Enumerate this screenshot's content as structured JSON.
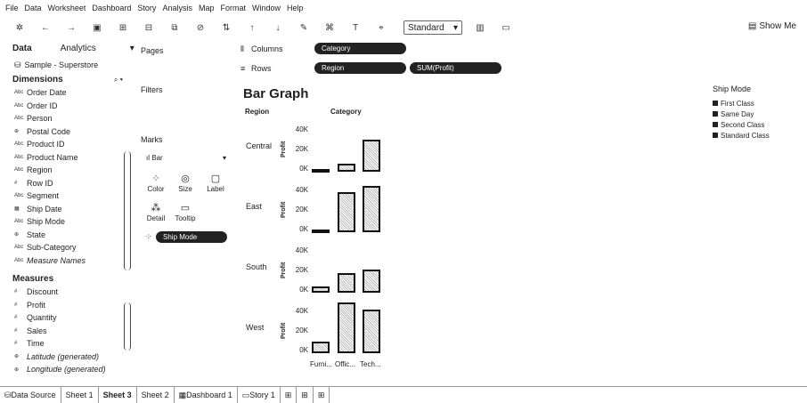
{
  "menu": [
    "File",
    "Data",
    "Worksheet",
    "Dashboard",
    "Story",
    "Analysis",
    "Map",
    "Format",
    "Window",
    "Help"
  ],
  "toolbar": {
    "fit_select": "Standard",
    "show_me": "Show Me"
  },
  "data_pane": {
    "tab_data": "Data",
    "tab_analytics": "Analytics",
    "datasource": "Sample - Superstore",
    "dimensions_header": "Dimensions",
    "dimensions": [
      {
        "type": "Abc",
        "name": "Order Date"
      },
      {
        "type": "Abc",
        "name": "Order ID"
      },
      {
        "type": "Abc",
        "name": "Person"
      },
      {
        "type": "⊕",
        "name": "Postal Code"
      },
      {
        "type": "Abc",
        "name": "Product ID"
      },
      {
        "type": "Abc",
        "name": "Product Name"
      },
      {
        "type": "Abc",
        "name": "Region"
      },
      {
        "type": "#",
        "name": "Row ID"
      },
      {
        "type": "Abc",
        "name": "Segment"
      },
      {
        "type": "▦",
        "name": "Ship Date"
      },
      {
        "type": "Abc",
        "name": "Ship Mode"
      },
      {
        "type": "⊕",
        "name": "State"
      },
      {
        "type": "Abc",
        "name": "Sub-Category"
      },
      {
        "type": "Abc",
        "name": "Measure Names",
        "italic": true
      }
    ],
    "measures_header": "Measures",
    "measures": [
      {
        "type": "#",
        "name": "Discount"
      },
      {
        "type": "#",
        "name": "Profit"
      },
      {
        "type": "#",
        "name": "Quantity"
      },
      {
        "type": "#",
        "name": "Sales"
      },
      {
        "type": "#",
        "name": "Time"
      },
      {
        "type": "⊕",
        "name": "Latitude (generated)",
        "italic": true
      },
      {
        "type": "⊕",
        "name": "Longitude (generated)",
        "italic": true
      }
    ]
  },
  "cards": {
    "pages": "Pages",
    "filters": "Filters",
    "marks": "Marks",
    "mark_type": "Bar",
    "buttons": {
      "color": "Color",
      "size": "Size",
      "label": "Label",
      "detail": "Detail",
      "tooltip": "Tooltip"
    },
    "marks_pill": "Ship Mode"
  },
  "shelves": {
    "columns_label": "Columns",
    "rows_label": "Rows",
    "columns_pill": "Category",
    "rows_pill_1": "Region",
    "rows_pill_2": "SUM(Profit)"
  },
  "viz": {
    "title": "Bar Graph",
    "region_header": "Region",
    "category_header": "Category",
    "profit_label": "Profit",
    "ticks": [
      "40K",
      "20K",
      "0K"
    ],
    "legend_title": "Ship Mode",
    "legend": [
      "First Class",
      "Same Day",
      "Second Class",
      "Standard Class"
    ]
  },
  "chart_data": {
    "type": "bar",
    "title": "Bar Graph",
    "xlabel": "Category",
    "ylabel": "Profit",
    "categories": [
      "Furni...",
      "Offic...",
      "Tech..."
    ],
    "ylim": [
      0,
      40000
    ],
    "panes": [
      {
        "region": "Central",
        "values": [
          200,
          8000,
          33000
        ]
      },
      {
        "region": "East",
        "values": [
          3000,
          41000,
          47000
        ]
      },
      {
        "region": "South",
        "values": [
          6000,
          20000,
          24000
        ]
      },
      {
        "region": "West",
        "values": [
          11500,
          52000,
          45000
        ]
      }
    ]
  },
  "tabs": [
    "Data Source",
    "Sheet 1",
    "Sheet 3",
    "Sheet 2",
    "Dashboard 1",
    "Story 1"
  ],
  "active_tab": "Sheet 3"
}
